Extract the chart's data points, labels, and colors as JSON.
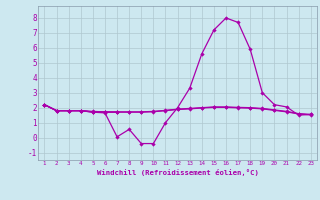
{
  "xlabel": "Windchill (Refroidissement éolien,°C)",
  "background_color": "#cde8f0",
  "grid_color": "#b0c8d0",
  "line_color": "#aa00aa",
  "x": [
    1,
    2,
    3,
    4,
    5,
    6,
    7,
    8,
    9,
    10,
    11,
    12,
    13,
    14,
    15,
    16,
    17,
    18,
    19,
    20,
    21,
    22,
    23
  ],
  "series_main": [
    2.2,
    1.8,
    1.8,
    1.8,
    1.7,
    1.65,
    0.05,
    0.55,
    -0.4,
    -0.4,
    1.0,
    2.0,
    3.3,
    5.6,
    7.2,
    8.0,
    7.7,
    5.9,
    3.0,
    2.2,
    2.05,
    1.5,
    1.55
  ],
  "series_flat1": [
    2.2,
    1.8,
    1.8,
    1.8,
    1.75,
    1.72,
    1.72,
    1.72,
    1.72,
    1.75,
    1.82,
    1.9,
    1.95,
    2.0,
    2.05,
    2.05,
    2.02,
    2.0,
    1.95,
    1.85,
    1.75,
    1.6,
    1.55
  ],
  "series_flat2": [
    2.2,
    1.8,
    1.8,
    1.8,
    1.72,
    1.7,
    1.7,
    1.7,
    1.7,
    1.73,
    1.8,
    1.88,
    1.92,
    1.98,
    2.02,
    2.02,
    1.99,
    1.97,
    1.92,
    1.82,
    1.72,
    1.58,
    1.52
  ],
  "series_short": [
    2.2,
    1.8,
    1.8,
    1.8,
    1.7,
    1.7,
    1.7,
    null,
    null,
    null,
    null,
    null,
    null,
    null,
    null,
    null,
    null,
    null,
    null,
    null,
    null,
    null,
    null
  ],
  "ylim": [
    -1.5,
    8.8
  ],
  "xlim": [
    0.5,
    23.5
  ],
  "yticks": [
    -1,
    0,
    1,
    2,
    3,
    4,
    5,
    6,
    7,
    8
  ],
  "xticks": [
    1,
    2,
    3,
    4,
    5,
    6,
    7,
    8,
    9,
    10,
    11,
    12,
    13,
    14,
    15,
    16,
    17,
    18,
    19,
    20,
    21,
    22,
    23
  ],
  "marker": "D",
  "markersize": 2.2,
  "linewidth": 0.9
}
